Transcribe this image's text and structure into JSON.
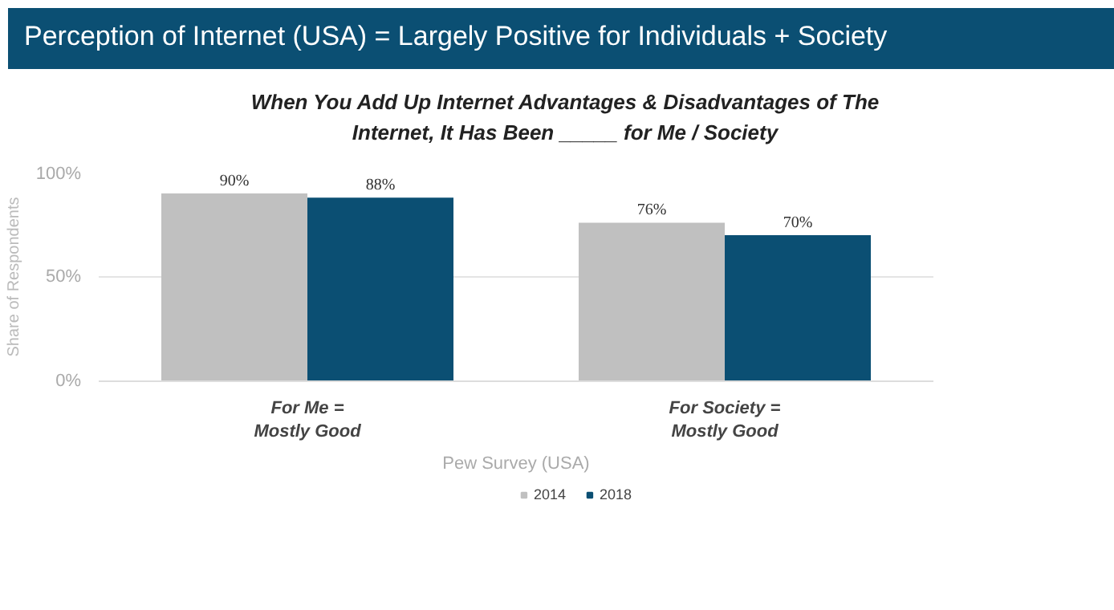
{
  "chart_data": {
    "type": "bar",
    "title": "Perception of Internet (USA) = Largely Positive for Individuals + Society",
    "subtitle": "When You Add Up Internet Advantages & Disadvantages of The Internet, It Has Been _____ for Me / Society",
    "categories": [
      "For Me = Mostly Good",
      "For Society = Mostly Good"
    ],
    "series": [
      {
        "name": "2014",
        "color": "#c0c0c0",
        "values": [
          90,
          76
        ],
        "value_labels": [
          "90%",
          "76%"
        ]
      },
      {
        "name": "2018",
        "color": "#0b4f73",
        "values": [
          88,
          70
        ],
        "value_labels": [
          "88%",
          "70%"
        ]
      }
    ],
    "ylim": [
      0,
      100
    ],
    "yticks": [
      {
        "value": 0,
        "label": "0%"
      },
      {
        "value": 50,
        "label": "50%"
      },
      {
        "value": 100,
        "label": "100%"
      }
    ],
    "ylabel": "Share of Respondents",
    "xlabel": "Pew Survey (USA)",
    "grid": "y",
    "legend": "bottom"
  }
}
